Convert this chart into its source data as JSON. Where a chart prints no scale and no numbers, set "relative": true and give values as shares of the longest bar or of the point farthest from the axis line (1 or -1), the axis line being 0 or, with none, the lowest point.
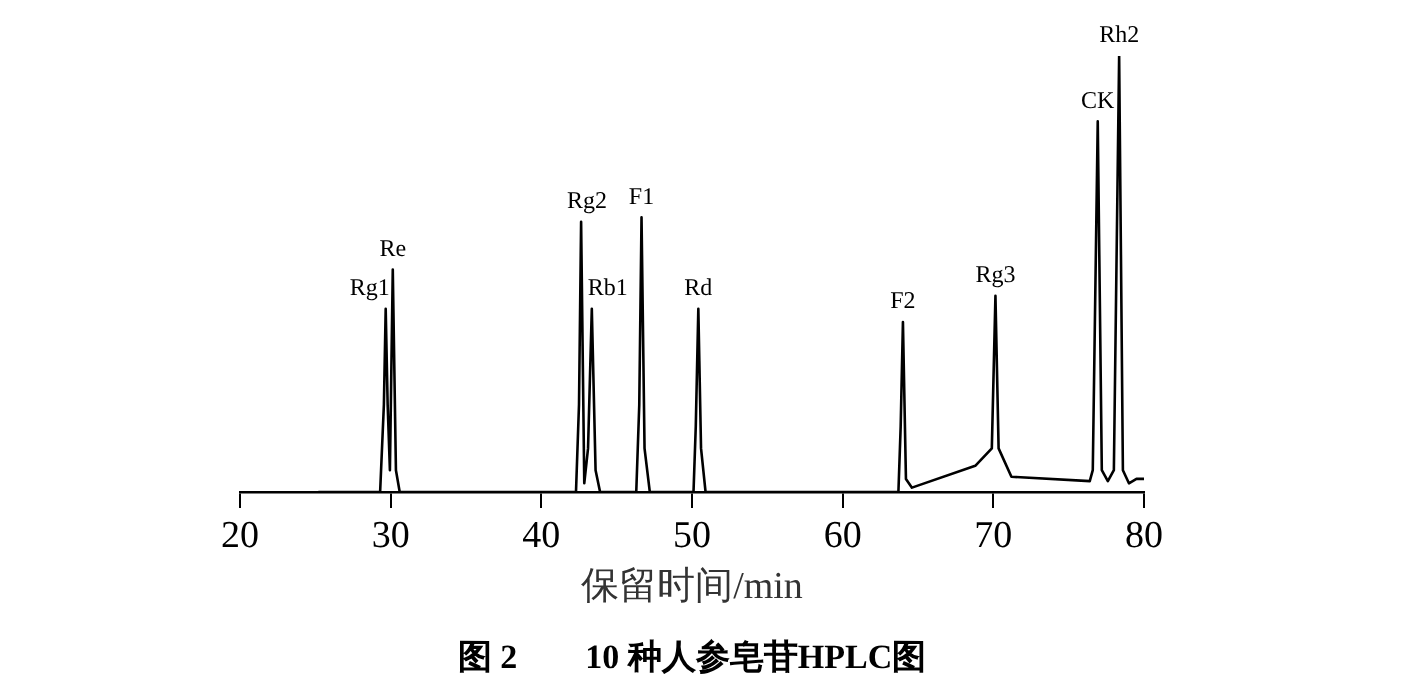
{
  "chart_data": {
    "type": "line",
    "relative": true,
    "title": "图 2　　10 种人参皂苷HPLC图",
    "xlabel": "保留时间/min",
    "xlim": [
      20,
      80
    ],
    "xticks": [
      20,
      30,
      40,
      50,
      60,
      70,
      80
    ],
    "grid": false,
    "legend": false,
    "marker": "none",
    "line_style": "solid",
    "tick_labels": "x",
    "x": [
      25.2,
      29.3,
      29.55,
      29.67,
      29.8,
      29.95,
      30.14,
      30.35,
      30.6,
      42.3,
      42.5,
      42.64,
      42.85,
      43.1,
      43.35,
      43.6,
      43.9,
      46.3,
      46.5,
      46.65,
      46.85,
      47.2,
      50.1,
      50.25,
      50.42,
      50.6,
      50.9,
      63.7,
      63.85,
      64.0,
      64.2,
      64.6,
      68.8,
      69.9,
      70.14,
      70.35,
      71.2,
      76.4,
      76.6,
      76.93,
      77.2,
      77.6,
      78.0,
      78.35,
      78.6,
      79.0,
      79.5,
      80.0
    ],
    "series": [
      {
        "color": "#000000",
        "values": [
          0,
          0,
          0.2,
          0.42,
          0.2,
          0.05,
          0.51,
          0.05,
          0,
          0,
          0.2,
          0.62,
          0.02,
          0.1,
          0.42,
          0.05,
          0,
          0,
          0.2,
          0.63,
          0.1,
          0,
          0,
          0.15,
          0.42,
          0.1,
          0,
          0,
          0.15,
          0.39,
          0.03,
          0.01,
          0.06,
          0.1,
          0.45,
          0.1,
          0.035,
          0.025,
          0.05,
          0.85,
          0.05,
          0.025,
          0.05,
          1,
          0.05,
          0.02,
          0.03,
          0.03
        ]
      }
    ],
    "annotations": [
      {
        "text": "Rg1",
        "x": 29.67,
        "y": 0.42
      },
      {
        "text": "Re",
        "x": 30.14,
        "y": 0.51
      },
      {
        "text": "Rg2",
        "x": 42.64,
        "y": 0.62
      },
      {
        "text": "Rb1",
        "x": 43.35,
        "y": 0.42
      },
      {
        "text": "F1",
        "x": 46.65,
        "y": 0.63
      },
      {
        "text": "Rd",
        "x": 50.42,
        "y": 0.42
      },
      {
        "text": "F2",
        "x": 64.0,
        "y": 0.39
      },
      {
        "text": "Rg3",
        "x": 70.14,
        "y": 0.45
      },
      {
        "text": "CK",
        "x": 76.93,
        "y": 0.85
      },
      {
        "text": "Rh2",
        "x": 78.35,
        "y": 1
      }
    ]
  }
}
